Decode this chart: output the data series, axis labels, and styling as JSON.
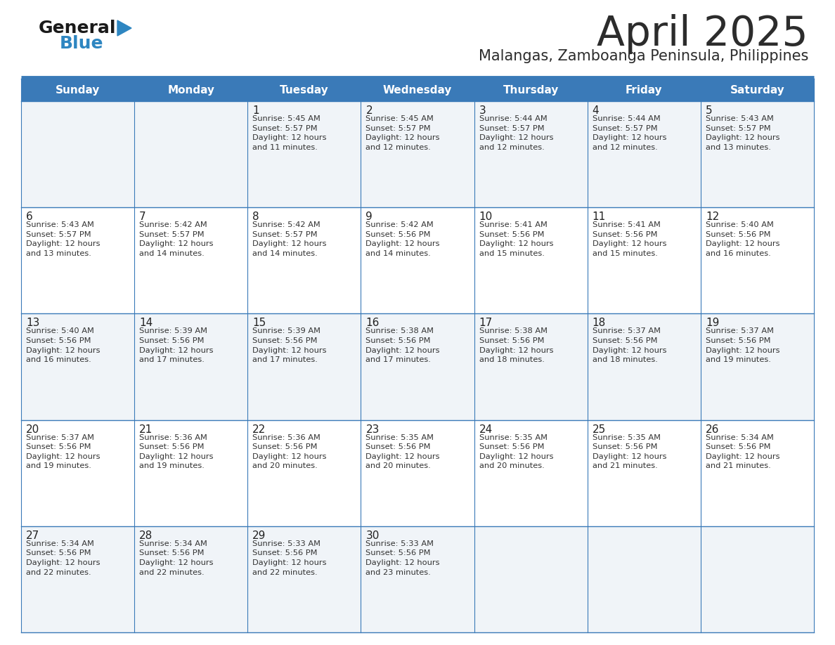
{
  "title": "April 2025",
  "subtitle": "Malangas, Zamboanga Peninsula, Philippines",
  "title_color": "#2c2c2c",
  "subtitle_color": "#2c2c2c",
  "header_bg_color": "#3a7ab8",
  "header_text_color": "#ffffff",
  "row_bg_even": "#f0f4f8",
  "row_bg_odd": "#ffffff",
  "border_color": "#3a7ab8",
  "day_headers": [
    "Sunday",
    "Monday",
    "Tuesday",
    "Wednesday",
    "Thursday",
    "Friday",
    "Saturday"
  ],
  "weeks": [
    [
      {
        "day": "",
        "info": ""
      },
      {
        "day": "",
        "info": ""
      },
      {
        "day": "1",
        "info": "Sunrise: 5:45 AM\nSunset: 5:57 PM\nDaylight: 12 hours\nand 11 minutes."
      },
      {
        "day": "2",
        "info": "Sunrise: 5:45 AM\nSunset: 5:57 PM\nDaylight: 12 hours\nand 12 minutes."
      },
      {
        "day": "3",
        "info": "Sunrise: 5:44 AM\nSunset: 5:57 PM\nDaylight: 12 hours\nand 12 minutes."
      },
      {
        "day": "4",
        "info": "Sunrise: 5:44 AM\nSunset: 5:57 PM\nDaylight: 12 hours\nand 12 minutes."
      },
      {
        "day": "5",
        "info": "Sunrise: 5:43 AM\nSunset: 5:57 PM\nDaylight: 12 hours\nand 13 minutes."
      }
    ],
    [
      {
        "day": "6",
        "info": "Sunrise: 5:43 AM\nSunset: 5:57 PM\nDaylight: 12 hours\nand 13 minutes."
      },
      {
        "day": "7",
        "info": "Sunrise: 5:42 AM\nSunset: 5:57 PM\nDaylight: 12 hours\nand 14 minutes."
      },
      {
        "day": "8",
        "info": "Sunrise: 5:42 AM\nSunset: 5:57 PM\nDaylight: 12 hours\nand 14 minutes."
      },
      {
        "day": "9",
        "info": "Sunrise: 5:42 AM\nSunset: 5:56 PM\nDaylight: 12 hours\nand 14 minutes."
      },
      {
        "day": "10",
        "info": "Sunrise: 5:41 AM\nSunset: 5:56 PM\nDaylight: 12 hours\nand 15 minutes."
      },
      {
        "day": "11",
        "info": "Sunrise: 5:41 AM\nSunset: 5:56 PM\nDaylight: 12 hours\nand 15 minutes."
      },
      {
        "day": "12",
        "info": "Sunrise: 5:40 AM\nSunset: 5:56 PM\nDaylight: 12 hours\nand 16 minutes."
      }
    ],
    [
      {
        "day": "13",
        "info": "Sunrise: 5:40 AM\nSunset: 5:56 PM\nDaylight: 12 hours\nand 16 minutes."
      },
      {
        "day": "14",
        "info": "Sunrise: 5:39 AM\nSunset: 5:56 PM\nDaylight: 12 hours\nand 17 minutes."
      },
      {
        "day": "15",
        "info": "Sunrise: 5:39 AM\nSunset: 5:56 PM\nDaylight: 12 hours\nand 17 minutes."
      },
      {
        "day": "16",
        "info": "Sunrise: 5:38 AM\nSunset: 5:56 PM\nDaylight: 12 hours\nand 17 minutes."
      },
      {
        "day": "17",
        "info": "Sunrise: 5:38 AM\nSunset: 5:56 PM\nDaylight: 12 hours\nand 18 minutes."
      },
      {
        "day": "18",
        "info": "Sunrise: 5:37 AM\nSunset: 5:56 PM\nDaylight: 12 hours\nand 18 minutes."
      },
      {
        "day": "19",
        "info": "Sunrise: 5:37 AM\nSunset: 5:56 PM\nDaylight: 12 hours\nand 19 minutes."
      }
    ],
    [
      {
        "day": "20",
        "info": "Sunrise: 5:37 AM\nSunset: 5:56 PM\nDaylight: 12 hours\nand 19 minutes."
      },
      {
        "day": "21",
        "info": "Sunrise: 5:36 AM\nSunset: 5:56 PM\nDaylight: 12 hours\nand 19 minutes."
      },
      {
        "day": "22",
        "info": "Sunrise: 5:36 AM\nSunset: 5:56 PM\nDaylight: 12 hours\nand 20 minutes."
      },
      {
        "day": "23",
        "info": "Sunrise: 5:35 AM\nSunset: 5:56 PM\nDaylight: 12 hours\nand 20 minutes."
      },
      {
        "day": "24",
        "info": "Sunrise: 5:35 AM\nSunset: 5:56 PM\nDaylight: 12 hours\nand 20 minutes."
      },
      {
        "day": "25",
        "info": "Sunrise: 5:35 AM\nSunset: 5:56 PM\nDaylight: 12 hours\nand 21 minutes."
      },
      {
        "day": "26",
        "info": "Sunrise: 5:34 AM\nSunset: 5:56 PM\nDaylight: 12 hours\nand 21 minutes."
      }
    ],
    [
      {
        "day": "27",
        "info": "Sunrise: 5:34 AM\nSunset: 5:56 PM\nDaylight: 12 hours\nand 22 minutes."
      },
      {
        "day": "28",
        "info": "Sunrise: 5:34 AM\nSunset: 5:56 PM\nDaylight: 12 hours\nand 22 minutes."
      },
      {
        "day": "29",
        "info": "Sunrise: 5:33 AM\nSunset: 5:56 PM\nDaylight: 12 hours\nand 22 minutes."
      },
      {
        "day": "30",
        "info": "Sunrise: 5:33 AM\nSunset: 5:56 PM\nDaylight: 12 hours\nand 23 minutes."
      },
      {
        "day": "",
        "info": ""
      },
      {
        "day": "",
        "info": ""
      },
      {
        "day": "",
        "info": ""
      }
    ]
  ]
}
